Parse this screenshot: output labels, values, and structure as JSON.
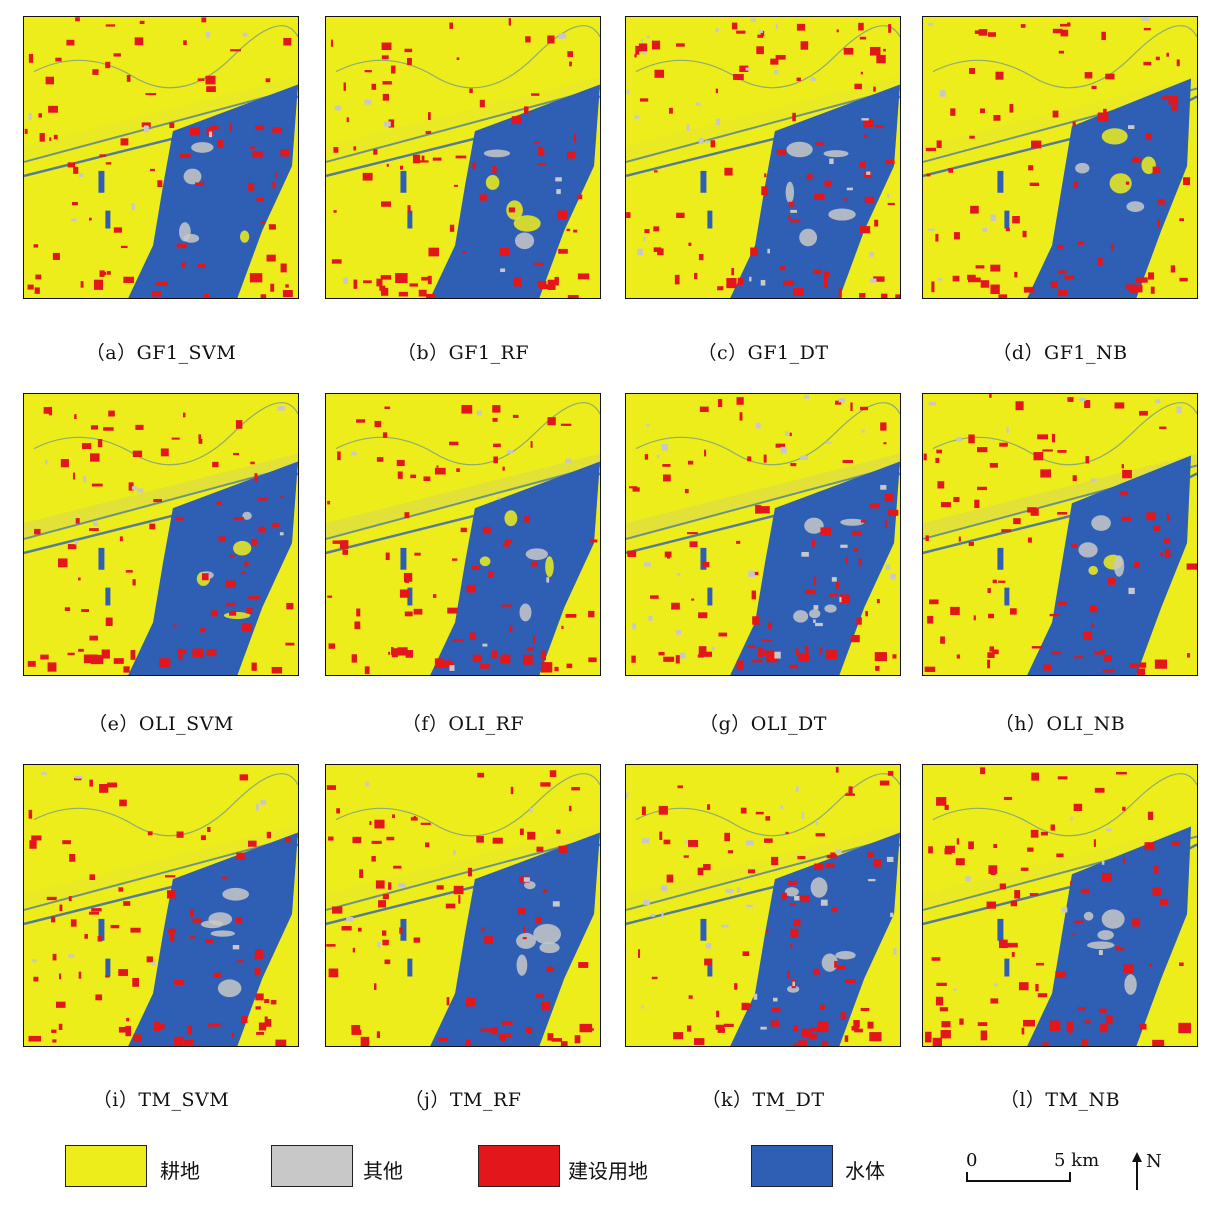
{
  "colors": {
    "cropland": "#eded1c",
    "other": "#c8c8c8",
    "built": "#e3161b",
    "water": "#2e5fb4"
  },
  "panels": [
    {
      "caption": "（a）GF1_SVM"
    },
    {
      "caption": "（b）GF1_RF"
    },
    {
      "caption": "（c）GF1_DT"
    },
    {
      "caption": "（d）GF1_NB"
    },
    {
      "caption": "（e）OLI_SVM"
    },
    {
      "caption": "（f）OLI_RF"
    },
    {
      "caption": "（g）OLI_DT"
    },
    {
      "caption": "（h）OLI_NB"
    },
    {
      "caption": "（i）TM_SVM"
    },
    {
      "caption": "（j）TM_RF"
    },
    {
      "caption": "（k）TM_DT"
    },
    {
      "caption": "（l）TM_NB"
    }
  ],
  "legend": {
    "items": [
      {
        "label": "耕地",
        "color": "#eded1c"
      },
      {
        "label": "其他",
        "color": "#c8c8c8"
      },
      {
        "label": "建设用地",
        "color": "#e3161b"
      },
      {
        "label": "水体",
        "color": "#2e5fb4"
      }
    ],
    "scale_zero": "0",
    "scale_end": "5 km",
    "north": "N"
  }
}
